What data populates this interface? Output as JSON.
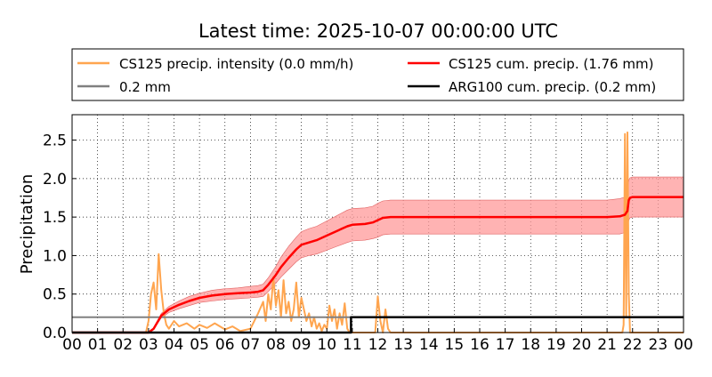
{
  "chart_data": {
    "type": "line",
    "title": "Latest time: 2025-10-07 00:00:00 UTC",
    "xlabel": "",
    "ylabel": "Precipitation",
    "xlim": [
      0,
      24
    ],
    "ylim": [
      0,
      2.83
    ],
    "grid": true,
    "legend_placement": "top",
    "x_ticks": [
      "00",
      "01",
      "02",
      "03",
      "04",
      "05",
      "06",
      "07",
      "08",
      "09",
      "10",
      "11",
      "12",
      "13",
      "14",
      "15",
      "16",
      "17",
      "18",
      "19",
      "20",
      "21",
      "22",
      "23",
      "00"
    ],
    "y_ticks": [
      "0.0",
      "0.5",
      "1.0",
      "1.5",
      "2.0",
      "2.5"
    ],
    "series": [
      {
        "name": "CS125 precip. intensity (0.0 mm/h)",
        "kind": "intensity",
        "color": "#ffa54f",
        "x": [
          0.0,
          2.9,
          3.0,
          3.1,
          3.2,
          3.3,
          3.4,
          3.5,
          3.6,
          3.7,
          3.8,
          4.0,
          4.2,
          4.5,
          4.8,
          5.0,
          5.3,
          5.6,
          6.0,
          6.3,
          6.6,
          7.0,
          7.3,
          7.5,
          7.6,
          7.7,
          7.8,
          7.9,
          8.0,
          8.1,
          8.2,
          8.3,
          8.4,
          8.5,
          8.6,
          8.7,
          8.8,
          8.9,
          9.0,
          9.1,
          9.2,
          9.3,
          9.4,
          9.5,
          9.6,
          9.7,
          9.8,
          9.9,
          10.0,
          10.1,
          10.2,
          10.3,
          10.4,
          10.5,
          10.6,
          10.7,
          10.8,
          10.9,
          11.0,
          11.5,
          11.9,
          12.0,
          12.1,
          12.2,
          12.3,
          12.4,
          12.5,
          13.0,
          15.0,
          16.0,
          17.0,
          18.0,
          19.0,
          20.0,
          21.0,
          21.6,
          21.65,
          21.7,
          21.75,
          21.8,
          21.85,
          21.9,
          21.95,
          22.0,
          22.5,
          23.0,
          24.0
        ],
        "y": [
          0.0,
          0.0,
          0.15,
          0.5,
          0.65,
          0.3,
          1.02,
          0.55,
          0.25,
          0.1,
          0.05,
          0.15,
          0.08,
          0.12,
          0.05,
          0.1,
          0.06,
          0.12,
          0.04,
          0.08,
          0.02,
          0.05,
          0.25,
          0.4,
          0.15,
          0.5,
          0.3,
          0.72,
          0.35,
          0.55,
          0.2,
          0.68,
          0.25,
          0.4,
          0.15,
          0.3,
          0.65,
          0.2,
          0.45,
          0.3,
          0.15,
          0.25,
          0.08,
          0.2,
          0.05,
          0.12,
          0.02,
          0.1,
          0.05,
          0.35,
          0.15,
          0.3,
          0.05,
          0.25,
          0.1,
          0.38,
          0.05,
          0.0,
          0.0,
          0.0,
          0.0,
          0.47,
          0.15,
          0.0,
          0.3,
          0.05,
          0.0,
          0.0,
          0.0,
          0.0,
          0.0,
          0.0,
          0.0,
          0.0,
          0.0,
          0.0,
          0.1,
          2.58,
          0.2,
          2.6,
          0.5,
          0.0,
          0.0,
          0.0,
          0.0,
          0.0,
          0.0
        ]
      },
      {
        "name": "0.2 mm",
        "kind": "threshold",
        "color": "#808080",
        "x": [
          0,
          11
        ],
        "y": [
          0.2,
          0.2
        ]
      },
      {
        "name": "CS125 cum. precip. (1.76 mm)",
        "kind": "cumulative",
        "color": "#ff0000",
        "band_color": "#ff9999",
        "x": [
          0.0,
          3.0,
          3.2,
          3.5,
          3.8,
          4.2,
          4.6,
          5.0,
          5.5,
          6.0,
          6.5,
          7.0,
          7.3,
          7.5,
          7.7,
          8.0,
          8.2,
          8.5,
          8.8,
          9.0,
          9.3,
          9.6,
          10.0,
          10.4,
          10.8,
          11.0,
          11.5,
          11.8,
          12.0,
          12.2,
          12.5,
          13.0,
          15.0,
          17.0,
          19.0,
          21.0,
          21.5,
          21.7,
          21.8,
          21.85,
          21.9,
          22.0,
          23.0,
          24.0
        ],
        "y": [
          0.0,
          0.0,
          0.05,
          0.22,
          0.3,
          0.36,
          0.41,
          0.45,
          0.48,
          0.5,
          0.51,
          0.52,
          0.53,
          0.55,
          0.62,
          0.75,
          0.85,
          0.97,
          1.08,
          1.14,
          1.17,
          1.2,
          1.26,
          1.32,
          1.38,
          1.4,
          1.41,
          1.43,
          1.46,
          1.49,
          1.5,
          1.5,
          1.5,
          1.5,
          1.5,
          1.5,
          1.51,
          1.53,
          1.58,
          1.72,
          1.75,
          1.76,
          1.76,
          1.76
        ],
        "lower": [
          0.0,
          0.0,
          0.04,
          0.19,
          0.26,
          0.31,
          0.35,
          0.39,
          0.41,
          0.43,
          0.44,
          0.45,
          0.46,
          0.47,
          0.53,
          0.64,
          0.72,
          0.82,
          0.92,
          0.97,
          1.0,
          1.02,
          1.07,
          1.12,
          1.17,
          1.19,
          1.2,
          1.22,
          1.24,
          1.27,
          1.28,
          1.28,
          1.28,
          1.28,
          1.28,
          1.28,
          1.28,
          1.3,
          1.34,
          1.46,
          1.49,
          1.5,
          1.5,
          1.5
        ],
        "upper": [
          0.0,
          0.0,
          0.06,
          0.25,
          0.34,
          0.41,
          0.47,
          0.51,
          0.55,
          0.57,
          0.58,
          0.6,
          0.61,
          0.63,
          0.71,
          0.86,
          0.98,
          1.12,
          1.24,
          1.31,
          1.35,
          1.38,
          1.45,
          1.52,
          1.59,
          1.61,
          1.62,
          1.64,
          1.68,
          1.71,
          1.72,
          1.72,
          1.72,
          1.72,
          1.72,
          1.72,
          1.74,
          1.76,
          1.82,
          1.98,
          2.01,
          2.02,
          2.02,
          2.02
        ]
      },
      {
        "name": "ARG100 cum. precip. (0.2 mm)",
        "kind": "cumulative",
        "color": "#000000",
        "x": [
          0,
          10.95,
          10.95,
          24
        ],
        "y": [
          0.0,
          0.0,
          0.2,
          0.2
        ]
      }
    ]
  }
}
